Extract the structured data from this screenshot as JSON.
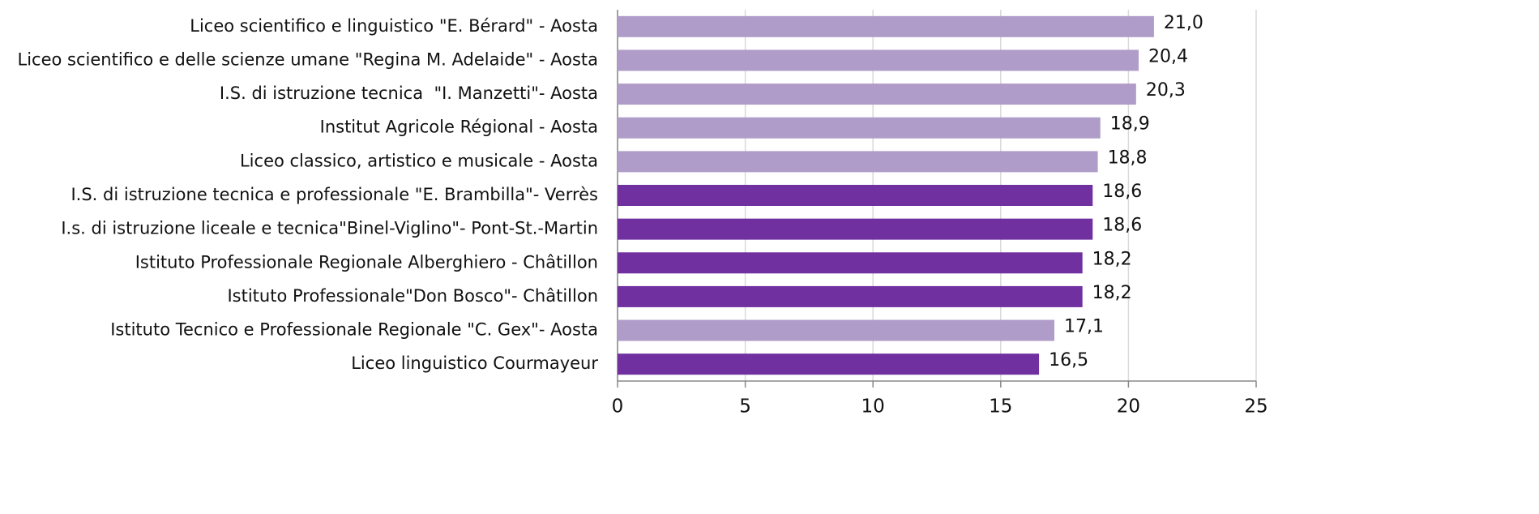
{
  "chart_data": {
    "type": "bar",
    "categories": [
      "Liceo scientifico e linguistico \"E. Bérard\" - Aosta",
      "Liceo scientifico e delle scienze umane \"Regina M. Adelaide\" - Aosta",
      "I.S. di istruzione tecnica  \"I. Manzetti\"- Aosta",
      "Institut Agricole Régional - Aosta",
      "Liceo classico, artistico e musicale - Aosta",
      "I.S. di istruzione tecnica e professionale \"E. Brambilla\"- Verrès",
      "I.s. di istruzione liceale e tecnica\"Binel-Viglino\"- Pont-St.-Martin",
      "Istituto Professionale Regionale Alberghiero - Châtillon",
      "Istituto Professionale\"Don Bosco\"- Châtillon",
      "Istituto Tecnico e Professionale Regionale \"C. Gex\"- Aosta",
      "Liceo linguistico Courmayeur"
    ],
    "values": [
      21.0,
      20.4,
      20.3,
      18.9,
      18.8,
      18.6,
      18.6,
      18.2,
      18.2,
      17.1,
      16.5
    ],
    "value_labels": [
      "21,0",
      "20,4",
      "20,3",
      "18,9",
      "18,8",
      "18,6",
      "18,6",
      "18,2",
      "18,2",
      "17,1",
      "16,5"
    ],
    "colors": [
      "#b09cc8",
      "#b09cc8",
      "#b09cc8",
      "#b09cc8",
      "#b09cc8",
      "#7030a0",
      "#7030a0",
      "#7030a0",
      "#7030a0",
      "#b09cc8",
      "#7030a0"
    ],
    "xlim": [
      0,
      25
    ],
    "xticks": [
      0,
      5,
      10,
      15,
      20,
      25
    ],
    "grid": true
  }
}
